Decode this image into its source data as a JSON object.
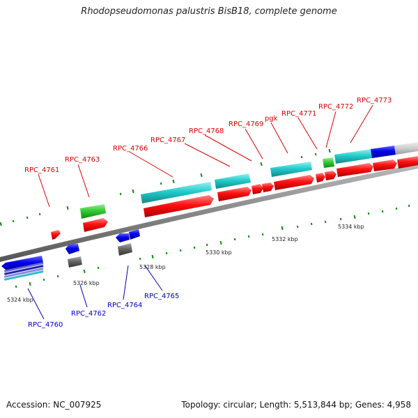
{
  "title": "Rhodopseudomonas palustris BisB18, complete genome",
  "footer": {
    "accession": "Accession: NC_007925",
    "stats": "Topology: circular; Length: 5,513,844 bp; Genes: 4,958"
  },
  "colors": {
    "forward_label": "#dd0000",
    "reverse_label": "#0000bb",
    "cds_red": "#ff1010",
    "cds_cyan": "#22cccc",
    "cds_green": "#33cc33",
    "cds_blue": "#1111ee",
    "cds_gray": "#666666",
    "backbone": "#888888",
    "tick_green": "#118811"
  },
  "scale_labels": [
    "5324 kbp",
    "5326 kbp",
    "5328 kbp",
    "5330 kbp",
    "5332 kbp",
    "5334 kbp"
  ],
  "forward_genes": [
    "RPC_4761",
    "RPC_4763",
    "RPC_4766",
    "RPC_4767",
    "RPC_4768",
    "RPC_4769",
    "pgk",
    "RPC_4771",
    "RPC_4772",
    "RPC_4773"
  ],
  "reverse_genes": [
    "RPC_4760",
    "RPC_4762",
    "RPC_4764",
    "RPC_4765"
  ]
}
